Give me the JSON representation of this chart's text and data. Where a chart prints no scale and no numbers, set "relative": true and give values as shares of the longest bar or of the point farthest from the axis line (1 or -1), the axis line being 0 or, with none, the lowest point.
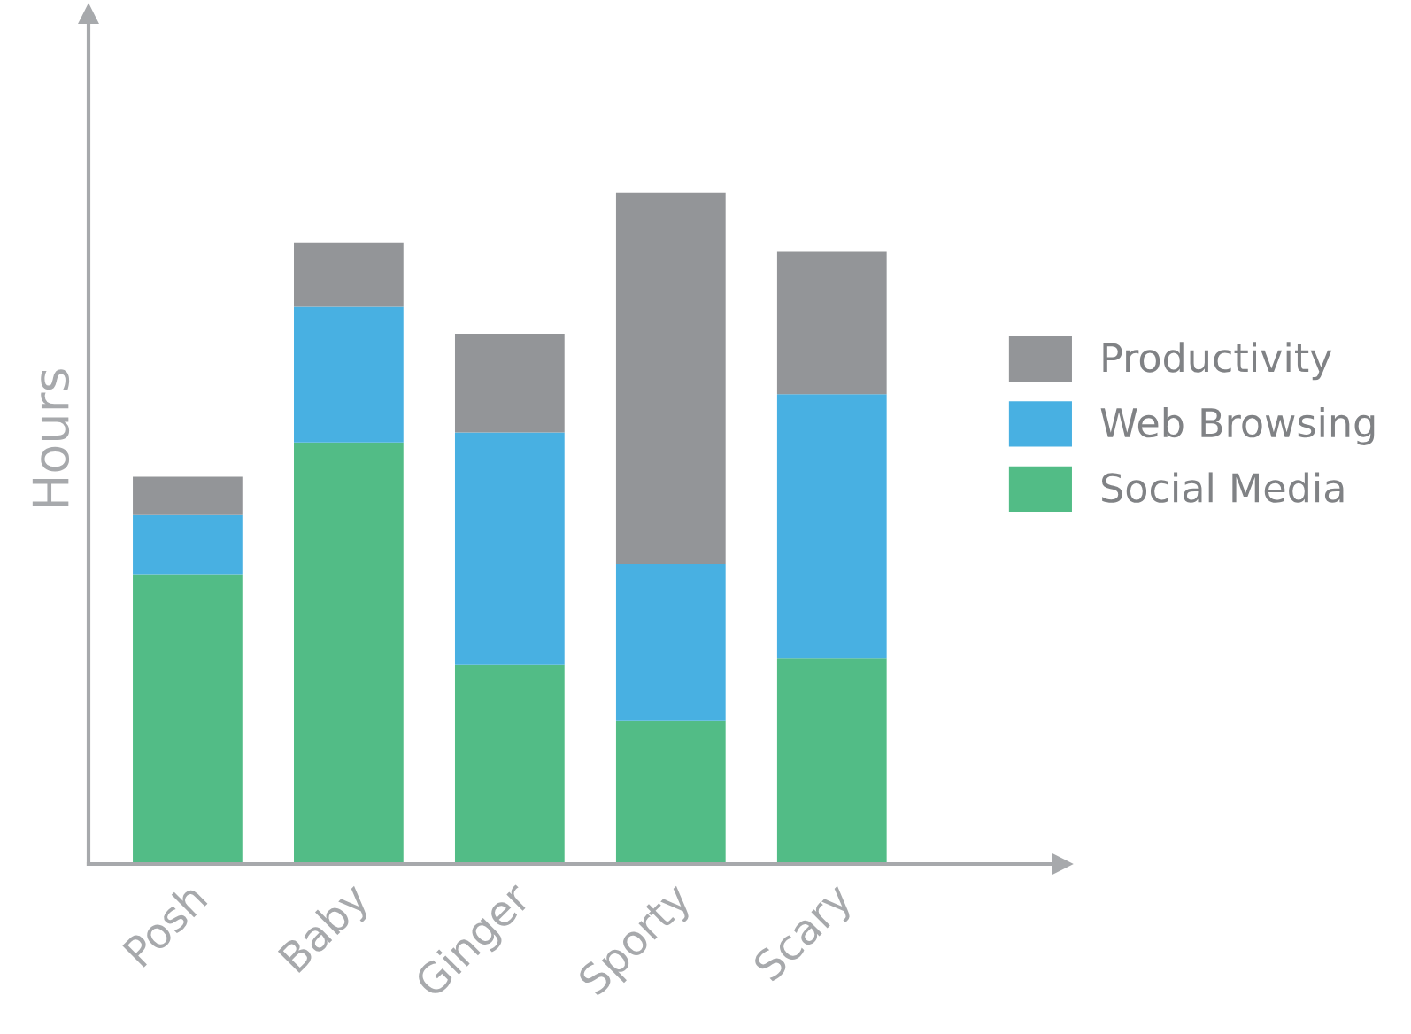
{
  "chart_data": {
    "type": "bar",
    "stacked": true,
    "relative": true,
    "ylabel": "Hours",
    "categories": [
      "Posh",
      "Baby",
      "Ginger",
      "Sporty",
      "Scary"
    ],
    "series": [
      {
        "name": "Social Media",
        "color": "#52bc86",
        "values": [
          0.432,
          0.628,
          0.297,
          0.214,
          0.307
        ]
      },
      {
        "name": "Web Browsing",
        "color": "#48b0e2",
        "values": [
          0.088,
          0.202,
          0.346,
          0.233,
          0.393
        ]
      },
      {
        "name": "Productivity",
        "color": "#939598",
        "values": [
          0.057,
          0.096,
          0.147,
          0.553,
          0.212
        ]
      }
    ],
    "legend": "right",
    "grid": false
  }
}
